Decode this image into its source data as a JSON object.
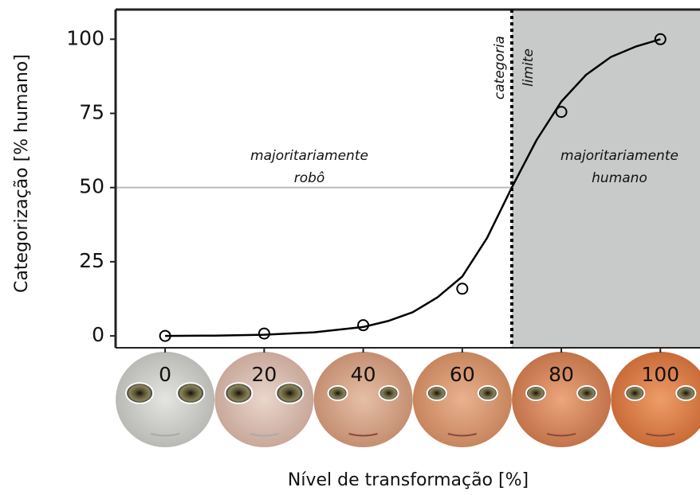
{
  "chart_data": {
    "type": "line",
    "x_label": "Nível de transformação [%]",
    "y_label": "Categorização [% humano]",
    "xlim": [
      -10,
      108
    ],
    "ylim": [
      -4,
      110
    ],
    "xticks": [
      0,
      20,
      40,
      60,
      80,
      100
    ],
    "yticks": [
      0,
      25,
      50,
      75,
      100
    ],
    "reference_line_y": 50,
    "boundary_x": 70,
    "shade_color": "#c8c9c9",
    "color": "#000000",
    "points": {
      "x": [
        0,
        20,
        40,
        60,
        80,
        100
      ],
      "values": [
        0,
        0.8,
        3.6,
        15.9,
        75.5,
        100
      ]
    },
    "fit": {
      "x": [
        0,
        10,
        20,
        30,
        40,
        45,
        50,
        55,
        60,
        65,
        70,
        75,
        80,
        85,
        90,
        95,
        100
      ],
      "values": [
        0,
        0.1,
        0.4,
        1.2,
        3,
        5,
        8,
        13,
        20,
        33,
        50,
        66,
        79,
        88,
        94,
        97.5,
        100
      ]
    },
    "annotations": [
      {
        "lines": [
          "majoritariamente",
          "robô"
        ]
      },
      {
        "lines": [
          "majoritariamente",
          "humano"
        ]
      },
      {
        "lines": [
          "categoria",
          "limite"
        ]
      }
    ]
  }
}
